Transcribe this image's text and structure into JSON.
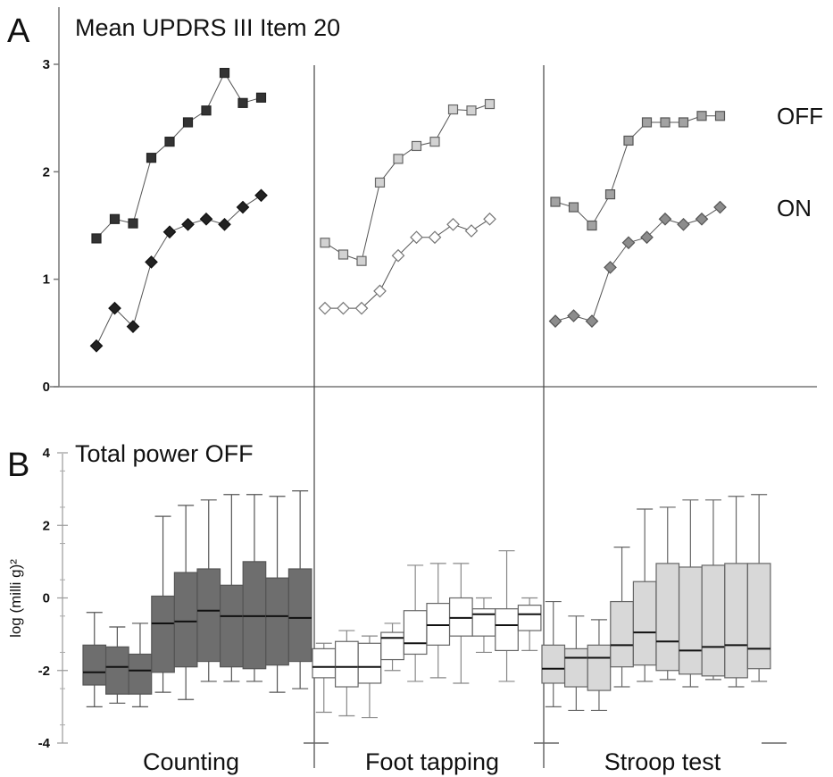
{
  "panel_a": {
    "letter": "A",
    "title": "Mean UPDRS III Item 20",
    "chart_data": {
      "type": "line",
      "ylim": [
        0,
        3
      ],
      "yticks": [
        "0",
        "1",
        "2",
        "3"
      ],
      "conditions": [
        "Counting",
        "Foot tapping",
        "Stroop test"
      ],
      "series_labels": {
        "OFF": "OFF",
        "ON": "ON"
      },
      "series": [
        {
          "name": "OFF",
          "values": [
            [
              1.38,
              1.56,
              1.52,
              2.13,
              2.28,
              2.46,
              2.57,
              2.92,
              2.64,
              2.69
            ],
            [
              1.34,
              1.23,
              1.17,
              1.9,
              2.12,
              2.24,
              2.28,
              2.58,
              2.57,
              2.63
            ],
            [
              1.72,
              1.67,
              1.5,
              1.79,
              2.29,
              2.46,
              2.46,
              2.46,
              2.52,
              2.52
            ]
          ]
        },
        {
          "name": "ON",
          "values": [
            [
              0.38,
              0.73,
              0.56,
              1.16,
              1.44,
              1.51,
              1.56,
              1.51,
              1.67,
              1.78
            ],
            [
              0.73,
              0.73,
              0.73,
              0.89,
              1.22,
              1.39,
              1.39,
              1.51,
              1.45,
              1.56
            ],
            [
              0.61,
              0.66,
              0.61,
              1.11,
              1.34,
              1.39,
              1.56,
              1.51,
              1.56,
              1.67
            ]
          ]
        }
      ]
    }
  },
  "panel_b": {
    "letter": "B",
    "title": "Total power OFF",
    "ylabel": "log (milli g)²",
    "chart_data": {
      "type": "box",
      "ylim": [
        -4,
        4
      ],
      "yticks": [
        "-4",
        "-2",
        "0",
        "2",
        "4"
      ],
      "conditions": [
        "Counting",
        "Foot tapping",
        "Stroop test"
      ],
      "colors": [
        "#6e6e6e",
        "#ffffff",
        "#d8d8d8"
      ],
      "boxes": [
        [
          {
            "min": -3.0,
            "q1": -2.4,
            "median": -2.05,
            "q3": -1.3,
            "max": -0.4
          },
          {
            "min": -2.9,
            "q1": -2.65,
            "median": -1.9,
            "q3": -1.35,
            "max": -0.8
          },
          {
            "min": -3.0,
            "q1": -2.65,
            "median": -2.0,
            "q3": -1.55,
            "max": -0.7
          },
          {
            "min": -2.6,
            "q1": -2.05,
            "median": -0.7,
            "q3": 0.05,
            "max": 2.25
          },
          {
            "min": -2.8,
            "q1": -1.9,
            "median": -0.65,
            "q3": 0.7,
            "max": 2.55
          },
          {
            "min": -2.3,
            "q1": -1.75,
            "median": -0.35,
            "q3": 0.8,
            "max": 2.7
          },
          {
            "min": -2.3,
            "q1": -1.9,
            "median": -0.5,
            "q3": 0.35,
            "max": 2.85
          },
          {
            "min": -2.3,
            "q1": -1.95,
            "median": -0.5,
            "q3": 1.0,
            "max": 2.85
          },
          {
            "min": -2.6,
            "q1": -1.85,
            "median": -0.5,
            "q3": 0.55,
            "max": 2.8
          },
          {
            "min": -2.5,
            "q1": -1.75,
            "median": -0.55,
            "q3": 0.8,
            "max": 2.95
          }
        ],
        [
          {
            "min": -3.15,
            "q1": -2.2,
            "median": -1.9,
            "q3": -1.4,
            "max": -1.25
          },
          {
            "min": -3.25,
            "q1": -2.45,
            "median": -1.9,
            "q3": -1.2,
            "max": -0.9
          },
          {
            "min": -3.3,
            "q1": -2.35,
            "median": -1.9,
            "q3": -1.25,
            "max": -1.05
          },
          {
            "min": -2.0,
            "q1": -1.7,
            "median": -1.1,
            "q3": -0.95,
            "max": -0.7
          },
          {
            "min": -2.3,
            "q1": -1.55,
            "median": -1.25,
            "q3": -0.35,
            "max": 0.9
          },
          {
            "min": -2.2,
            "q1": -1.3,
            "median": -0.75,
            "q3": -0.15,
            "max": 0.95
          },
          {
            "min": -2.35,
            "q1": -1.05,
            "median": -0.55,
            "q3": 0.0,
            "max": 0.95
          },
          {
            "min": -1.5,
            "q1": -1.05,
            "median": -0.45,
            "q3": -0.3,
            "max": 0.0
          },
          {
            "min": -2.3,
            "q1": -1.45,
            "median": -0.75,
            "q3": -0.3,
            "max": 1.3
          },
          {
            "min": -1.45,
            "q1": -0.9,
            "median": -0.45,
            "q3": -0.2,
            "max": 0.0
          }
        ],
        [
          {
            "min": -3.0,
            "q1": -2.35,
            "median": -1.95,
            "q3": -1.3,
            "max": -0.1
          },
          {
            "min": -3.1,
            "q1": -2.45,
            "median": -1.65,
            "q3": -1.4,
            "max": -0.5
          },
          {
            "min": -3.1,
            "q1": -2.55,
            "median": -1.65,
            "q3": -1.3,
            "max": -0.6
          },
          {
            "min": -2.45,
            "q1": -1.9,
            "median": -1.3,
            "q3": -0.1,
            "max": 1.4
          },
          {
            "min": -2.3,
            "q1": -1.85,
            "median": -0.95,
            "q3": 0.45,
            "max": 2.45
          },
          {
            "min": -2.25,
            "q1": -2.0,
            "median": -1.2,
            "q3": 0.95,
            "max": 2.5
          },
          {
            "min": -2.45,
            "q1": -2.1,
            "median": -1.45,
            "q3": 0.85,
            "max": 2.7
          },
          {
            "min": -2.25,
            "q1": -2.15,
            "median": -1.35,
            "q3": 0.9,
            "max": 2.7
          },
          {
            "min": -2.45,
            "q1": -2.2,
            "median": -1.3,
            "q3": 0.95,
            "max": 2.8
          },
          {
            "min": -2.3,
            "q1": -1.95,
            "median": -1.4,
            "q3": 0.95,
            "max": 2.85
          }
        ]
      ]
    }
  }
}
